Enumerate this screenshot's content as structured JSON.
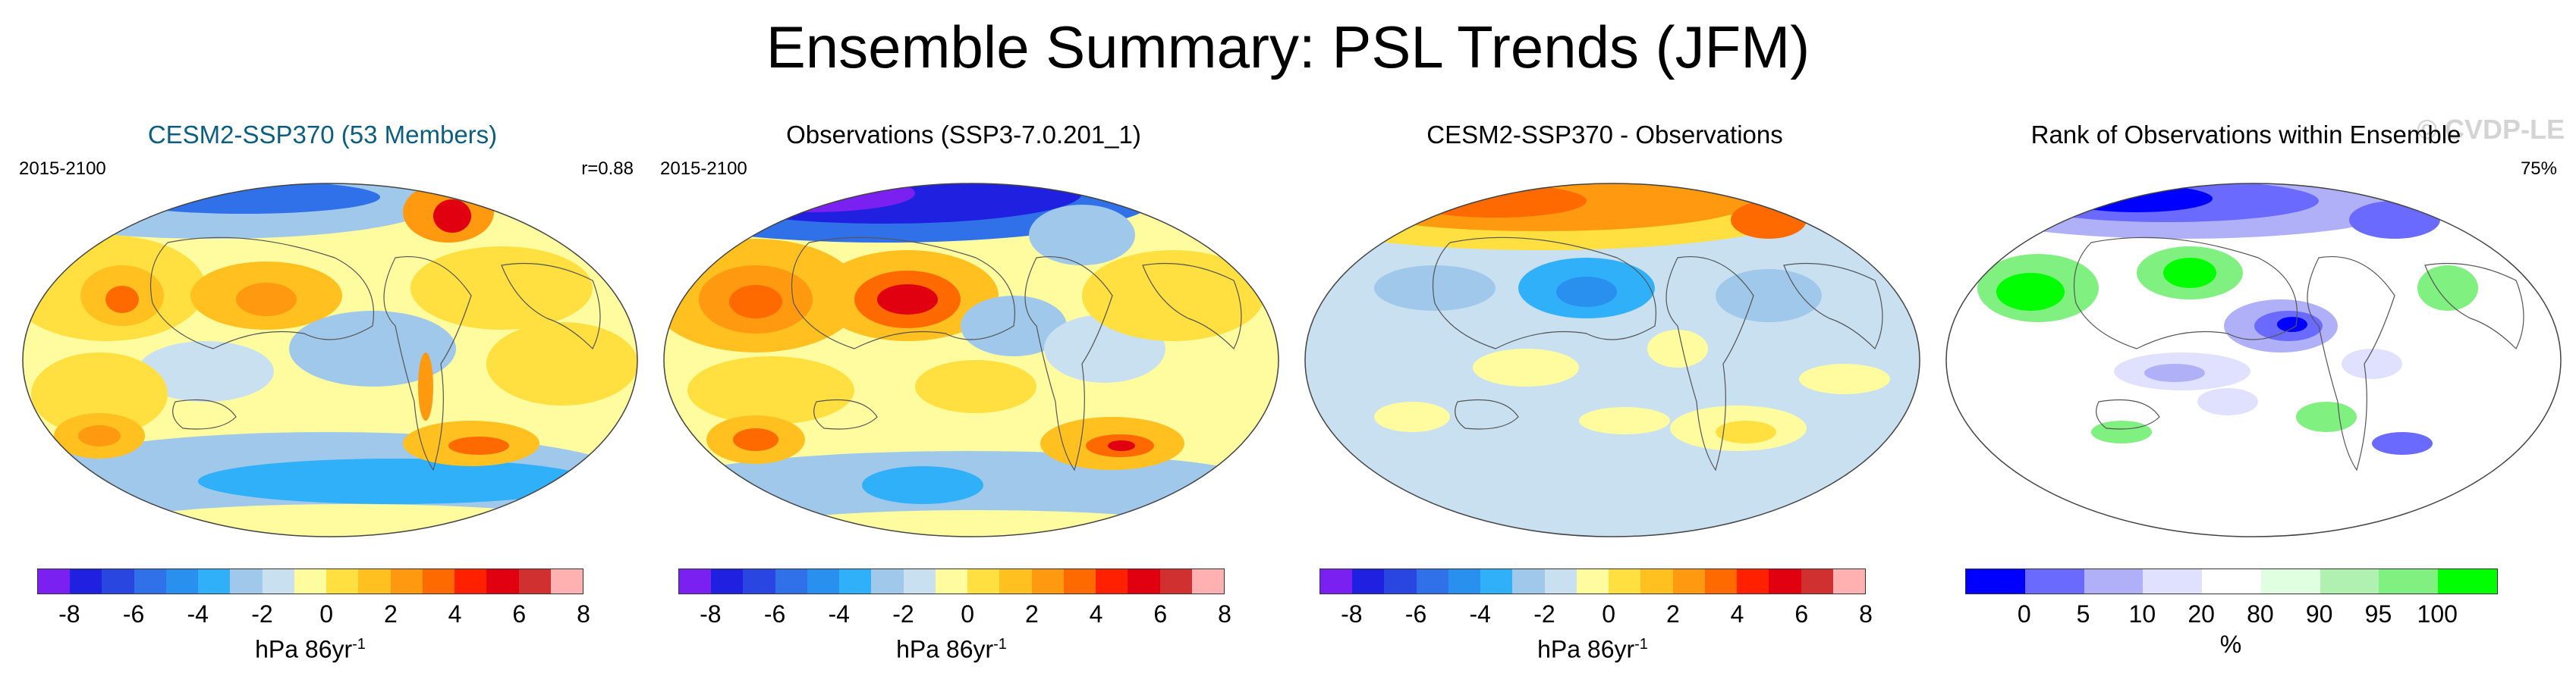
{
  "figure": {
    "title": "Ensemble Summary: PSL Trends (JFM)",
    "watermark": "© CVDP-LE"
  },
  "panels": [
    {
      "id": "cesm",
      "title": "CESM2-SSP370 (53 Members)",
      "period": "2015-2100",
      "stat": "r=0.88",
      "units": "hPa 86yr",
      "units_exp": "-1"
    },
    {
      "id": "obs",
      "title": "Observations (SSP3-7.0.201_1)",
      "period": "2015-2100",
      "stat": "",
      "units": "hPa 86yr",
      "units_exp": "-1"
    },
    {
      "id": "diff",
      "title": "CESM2-SSP370 - Observations",
      "period": "",
      "stat": "",
      "units": "hPa 86yr",
      "units_exp": "-1"
    },
    {
      "id": "rank",
      "title": "Rank of Observations within Ensemble",
      "period": "",
      "stat": "75%",
      "units": "%",
      "units_exp": ""
    }
  ],
  "trend_colorbar": {
    "colors": [
      "#7a20f0",
      "#2020e0",
      "#2a46e0",
      "#3070e8",
      "#2a90f0",
      "#30b0f8",
      "#a0c8ea",
      "#c8e0f0",
      "#fffca0",
      "#ffe040",
      "#ffc020",
      "#ff9a10",
      "#ff6a00",
      "#ff2000",
      "#e00010",
      "#d03030",
      "#ffb0b0"
    ],
    "ticks": [
      "-8",
      "-6",
      "-4",
      "-2",
      "0",
      "2",
      "4",
      "6",
      "8"
    ]
  },
  "rank_colorbar": {
    "colors": [
      "#0000ff",
      "#6a6aff",
      "#b0b0f8",
      "#e0e0ff",
      "#ffffff",
      "#e0ffe0",
      "#b0f0b0",
      "#80f080",
      "#00ff00"
    ],
    "ticks": [
      "0",
      "5",
      "10",
      "20",
      "80",
      "90",
      "95",
      "100"
    ]
  }
}
